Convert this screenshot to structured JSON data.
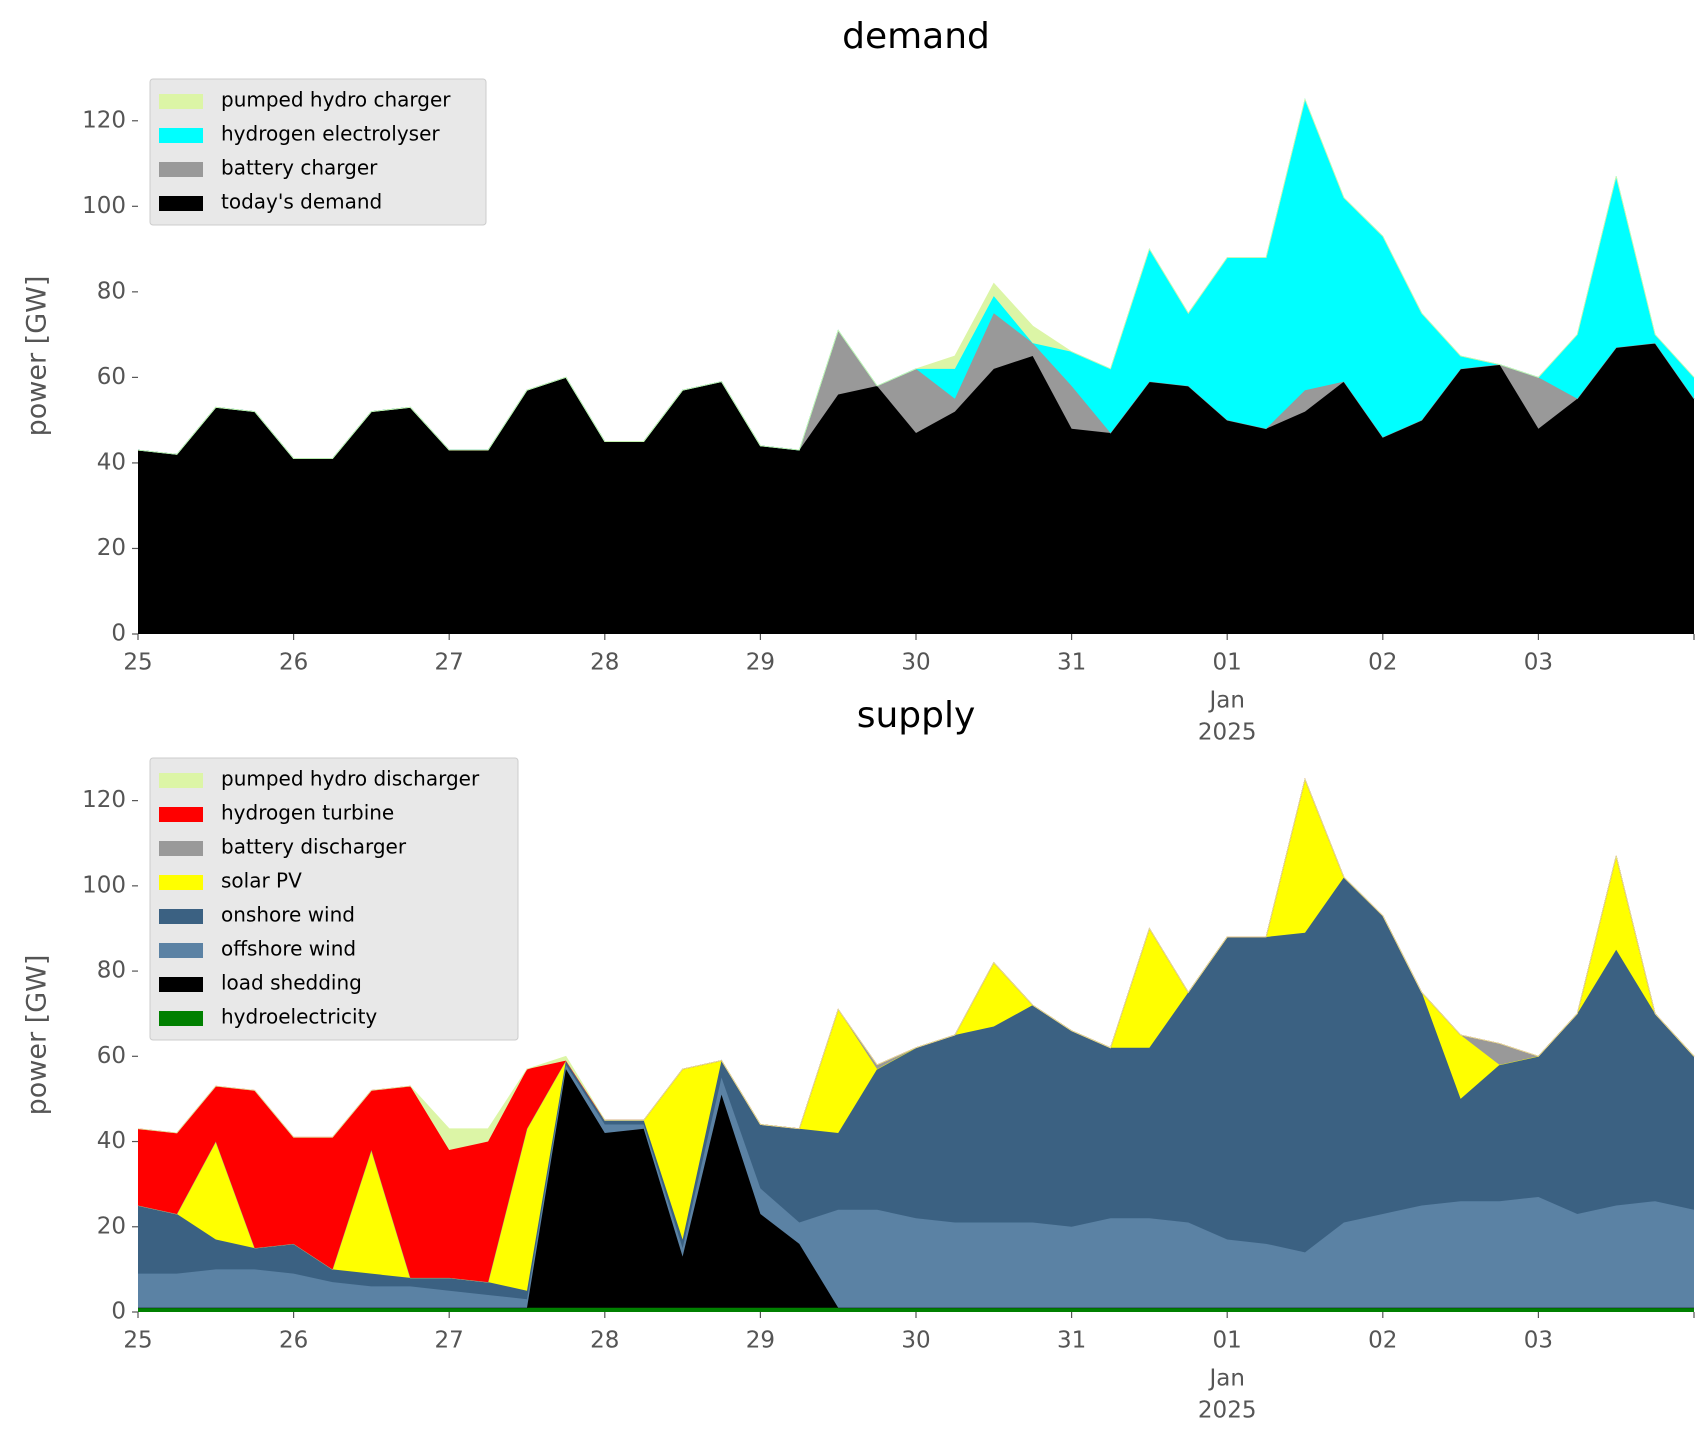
{
  "chart_data": [
    {
      "type": "area",
      "stacked": true,
      "title": "demand",
      "ylabel": "power [GW]",
      "legend": "upper left",
      "xlim": [
        0,
        10
      ],
      "xticks": [
        {
          "value": 0,
          "label": "25"
        },
        {
          "value": 1,
          "label": "26"
        },
        {
          "value": 2,
          "label": "27"
        },
        {
          "value": 3,
          "label": "28"
        },
        {
          "value": 4,
          "label": "29"
        },
        {
          "value": 5,
          "label": "30"
        },
        {
          "value": 6,
          "label": "31"
        },
        {
          "value": 7,
          "label": "01"
        },
        {
          "value": 8,
          "label": "02"
        },
        {
          "value": 9,
          "label": "03"
        }
      ],
      "xtick_sublabels": [
        {
          "value": 7,
          "label": "Jan"
        },
        {
          "value": 7,
          "label": "2025"
        }
      ],
      "ylim": [
        0,
        130
      ],
      "yticks": [
        0,
        20,
        40,
        60,
        80,
        100,
        120
      ],
      "x": [
        0,
        0.25,
        0.5,
        0.75,
        1,
        1.25,
        1.5,
        1.75,
        2,
        2.25,
        2.5,
        2.75,
        3,
        3.25,
        3.5,
        3.75,
        4,
        4.25,
        4.5,
        4.75,
        5,
        5.25,
        5.5,
        5.75,
        6,
        6.25,
        6.5,
        6.75,
        7,
        7.25,
        7.5,
        7.75,
        8,
        8.25,
        8.5,
        8.75,
        9,
        9.25,
        9.5,
        9.75,
        10
      ],
      "series": [
        {
          "name": "pumped hydro charger",
          "color": "#dcf5a6",
          "values": [
            0,
            0,
            0,
            0,
            0,
            0,
            0,
            0,
            0,
            0,
            0,
            0,
            0,
            0,
            0,
            0,
            0,
            0,
            0,
            0,
            0,
            3,
            3,
            4,
            0,
            0,
            0,
            0,
            0,
            0,
            0,
            0,
            0,
            0,
            0,
            0,
            0,
            0,
            0,
            0,
            0
          ]
        },
        {
          "name": "hydrogen electrolyser",
          "color": "#00ffff",
          "values": [
            0,
            0,
            0,
            0,
            0,
            0,
            0,
            0,
            0,
            0,
            0,
            0,
            0,
            0,
            0,
            0,
            0,
            0,
            0,
            0,
            0,
            7,
            4,
            0,
            8,
            15,
            31,
            17,
            38,
            40,
            68,
            43,
            47,
            25,
            3,
            0,
            0,
            15,
            40,
            2,
            5
          ]
        },
        {
          "name": "battery charger",
          "color": "#999999",
          "values": [
            0,
            0,
            0,
            0,
            0,
            0,
            0,
            0,
            0,
            0,
            0,
            0,
            0,
            0,
            0,
            0,
            0,
            0,
            15,
            0,
            15,
            3,
            13,
            3,
            10,
            0,
            0,
            0,
            0,
            0,
            5,
            0,
            0,
            0,
            0,
            0,
            12,
            0,
            0,
            0,
            0
          ]
        },
        {
          "name": "today's demand",
          "color": "#000000",
          "values": [
            43,
            42,
            53,
            52,
            41,
            41,
            52,
            53,
            43,
            43,
            57,
            60,
            45,
            45,
            57,
            59,
            44,
            43,
            56,
            58,
            47,
            52,
            62,
            65,
            48,
            47,
            59,
            58,
            50,
            48,
            52,
            59,
            46,
            50,
            62,
            63,
            48,
            55,
            67,
            68,
            55
          ]
        }
      ]
    },
    {
      "type": "area",
      "stacked": true,
      "title": "supply",
      "ylabel": "power [GW]",
      "legend": "upper left",
      "xlim": [
        0,
        10
      ],
      "xticks": [
        {
          "value": 0,
          "label": "25"
        },
        {
          "value": 1,
          "label": "26"
        },
        {
          "value": 2,
          "label": "27"
        },
        {
          "value": 3,
          "label": "28"
        },
        {
          "value": 4,
          "label": "29"
        },
        {
          "value": 5,
          "label": "30"
        },
        {
          "value": 6,
          "label": "31"
        },
        {
          "value": 7,
          "label": "01"
        },
        {
          "value": 8,
          "label": "02"
        },
        {
          "value": 9,
          "label": "03"
        }
      ],
      "xtick_sublabels": [
        {
          "value": 7,
          "label": "Jan"
        },
        {
          "value": 7,
          "label": "2025"
        }
      ],
      "ylim": [
        0,
        130
      ],
      "yticks": [
        0,
        20,
        40,
        60,
        80,
        100,
        120
      ],
      "x": [
        0,
        0.25,
        0.5,
        0.75,
        1,
        1.25,
        1.5,
        1.75,
        2,
        2.25,
        2.5,
        2.75,
        3,
        3.25,
        3.5,
        3.75,
        4,
        4.25,
        4.5,
        4.75,
        5,
        5.25,
        5.5,
        5.75,
        6,
        6.25,
        6.5,
        6.75,
        7,
        7.25,
        7.5,
        7.75,
        8,
        8.25,
        8.5,
        8.75,
        9,
        9.25,
        9.5,
        9.75,
        10
      ],
      "series": [
        {
          "name": "pumped hydro discharger",
          "color": "#dcf5a6",
          "values": [
            0,
            0,
            0,
            0,
            0,
            0,
            0,
            0,
            5,
            3,
            0,
            1,
            0,
            0,
            0,
            0,
            0,
            0,
            0,
            0,
            0,
            0,
            0,
            0,
            0,
            0,
            0,
            0,
            0,
            0,
            0,
            0,
            0,
            0,
            0,
            0,
            0,
            0,
            0,
            0,
            0
          ]
        },
        {
          "name": "hydrogen turbine",
          "color": "#ff0000",
          "values": [
            18,
            19,
            13,
            37,
            25,
            31,
            14,
            45,
            30,
            33,
            14,
            0,
            0,
            0,
            0,
            0,
            0,
            0,
            0,
            0,
            0,
            0,
            0,
            0,
            0,
            0,
            0,
            0,
            0,
            0,
            0,
            0,
            0,
            0,
            0,
            0,
            0,
            0,
            0,
            0,
            0
          ]
        },
        {
          "name": "battery discharger",
          "color": "#999999",
          "values": [
            0,
            0,
            0,
            0,
            0,
            0,
            0,
            0,
            0,
            0,
            0,
            0,
            0,
            0,
            0,
            0,
            0,
            0,
            0,
            1,
            0,
            0,
            0,
            0,
            0,
            0,
            0,
            0,
            0,
            0,
            0,
            0,
            0,
            0,
            0,
            5,
            0,
            0,
            0,
            0,
            0
          ]
        },
        {
          "name": "solar PV",
          "color": "#ffff00",
          "values": [
            0,
            0,
            23,
            0,
            0,
            0,
            29,
            0,
            0,
            0,
            38,
            0,
            0,
            0,
            40,
            0,
            0,
            0,
            29,
            0,
            0,
            0,
            15,
            0,
            0,
            0,
            28,
            0,
            0,
            0,
            36,
            0,
            0,
            0,
            15,
            0,
            0,
            0,
            22,
            0,
            0
          ]
        },
        {
          "name": "onshore wind",
          "color": "#3b6182",
          "values": [
            16,
            14,
            7,
            5,
            7,
            3,
            3,
            2,
            3,
            3,
            2,
            1,
            1,
            1,
            2,
            4,
            15,
            22,
            18,
            33,
            40,
            44,
            46,
            51,
            46,
            40,
            40,
            54,
            71,
            72,
            75,
            81,
            70,
            50,
            24,
            32,
            33,
            47,
            60,
            44,
            36
          ]
        },
        {
          "name": "offshore wind",
          "color": "#5b82a4",
          "values": [
            8,
            8,
            9,
            9,
            8,
            6,
            5,
            5,
            4,
            3,
            2,
            1,
            2,
            1,
            2,
            4,
            6,
            5,
            23,
            23,
            21,
            20,
            20,
            20,
            19,
            21,
            21,
            20,
            16,
            15,
            13,
            20,
            22,
            24,
            25,
            25,
            26,
            22,
            24,
            25,
            23
          ]
        },
        {
          "name": "load shedding",
          "color": "#000000",
          "values": [
            0,
            0,
            0,
            0,
            0,
            0,
            0,
            0,
            0,
            0,
            0,
            56,
            41,
            42,
            12,
            50,
            22,
            15,
            0,
            0,
            0,
            0,
            0,
            0,
            0,
            0,
            0,
            0,
            0,
            0,
            0,
            0,
            0,
            0,
            0,
            0,
            0,
            0,
            0,
            0,
            0
          ]
        },
        {
          "name": "hydroelectricity",
          "color": "#008000",
          "values": [
            1,
            1,
            1,
            1,
            1,
            1,
            1,
            1,
            1,
            1,
            1,
            1,
            1,
            1,
            1,
            1,
            1,
            1,
            1,
            1,
            1,
            1,
            1,
            1,
            1,
            1,
            1,
            1,
            1,
            1,
            1,
            1,
            1,
            1,
            1,
            1,
            1,
            1,
            1,
            1,
            1
          ]
        }
      ]
    }
  ]
}
